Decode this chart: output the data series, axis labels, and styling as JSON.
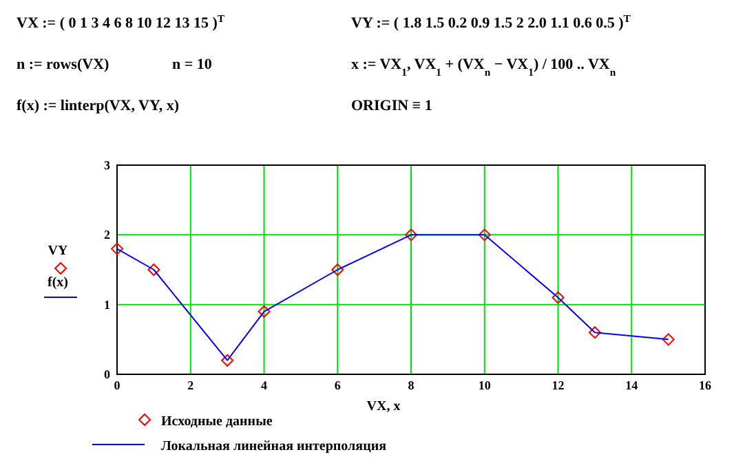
{
  "chart_data": {
    "type": "scatter",
    "xlabel": "VX, x",
    "ylabel": "VY f(x)",
    "annotations": [
      "VX := ( 0  1  3  4  6  8  10  12  13  15 )$^{T}$",
      "VY := ( 1.8  1.5  0.2  0.9  1.5  2  2.0  1.1  0.6  0.5 )$^{T}$",
      "n := rows(VX)",
      "n = 10",
      "x := VX$_{1}$, VX$_{1}$ + (VX$_{n}$ − VX$_{1}$) / 100 .. VX$_{n}$",
      "f(x) := linterp(VX, VY, x)",
      "ORIGIN ≡ 1"
    ],
    "x": [
      0,
      1,
      3,
      4,
      6,
      8,
      10,
      12,
      13,
      15
    ],
    "series": [
      {
        "name": "Исходные данные",
        "color": "#ff0000",
        "marker": "diamond",
        "values": [
          1.8,
          1.5,
          0.2,
          0.9,
          1.5,
          2,
          2.0,
          1.1,
          0.6,
          0.5
        ]
      },
      {
        "name": "Локальная линейная интерполяция",
        "type": "line",
        "color": "#0000ff",
        "line_style": "solid",
        "marker": "none",
        "values": [
          1.8,
          1.5,
          0.2,
          0.9,
          1.5,
          2,
          2.0,
          1.1,
          0.6,
          0.5
        ]
      }
    ],
    "xlim": [
      0,
      16
    ],
    "xticks": [
      0,
      2,
      4,
      6,
      8,
      10,
      12,
      14,
      16
    ],
    "ylim": [
      0,
      3
    ],
    "yticks": [
      0,
      1,
      2,
      3
    ],
    "grid": true,
    "legend": "bottom left"
  }
}
